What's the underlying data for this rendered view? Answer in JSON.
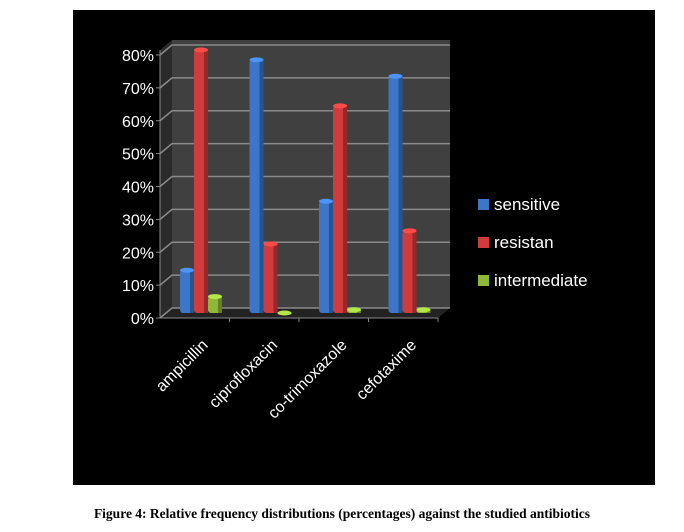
{
  "chart_data": {
    "type": "bar",
    "title": "",
    "xlabel": "",
    "ylabel": "",
    "ylim": [
      0,
      80
    ],
    "yticks": [
      "0%",
      "10%",
      "20%",
      "30%",
      "40%",
      "50%",
      "60%",
      "70%",
      "80%"
    ],
    "categories": [
      "ampicillin",
      "ciprofloxacin",
      "co-trimoxazole",
      "cefotaxime"
    ],
    "series": [
      {
        "name": "sensitive",
        "values": [
          13,
          77,
          34,
          72
        ],
        "color": "#3b76c9"
      },
      {
        "name": "resistan",
        "values": [
          80,
          21,
          63,
          25
        ],
        "color": "#d23b3b"
      },
      {
        "name": "intermediate",
        "values": [
          5,
          0,
          1,
          1
        ],
        "color": "#8fb83a"
      }
    ],
    "grid": true,
    "legend": "right"
  },
  "caption": "Figure 4: Relative frequency distributions (percentages) against the studied antibiotics"
}
